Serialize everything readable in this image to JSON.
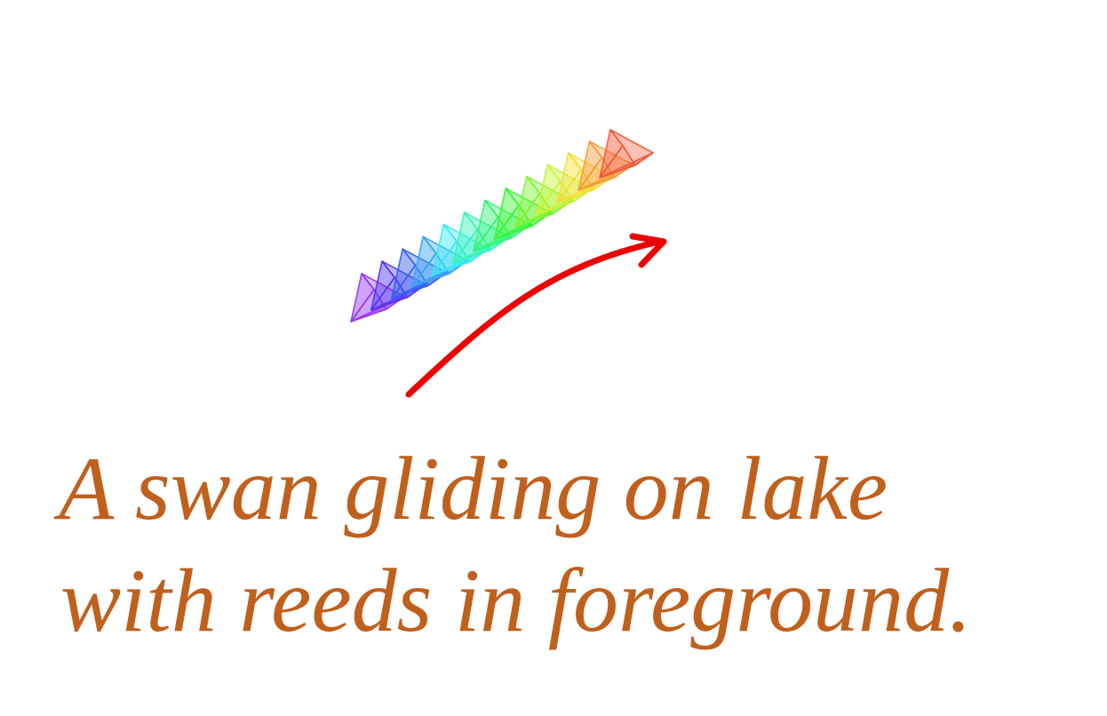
{
  "caption": {
    "line1": "A swan gliding on lake",
    "line2": "with reeds in foreground."
  },
  "colors": {
    "caption": "#c0601c",
    "motion_arrow": "#ee0000",
    "trail_start": "#8b2cf5",
    "trail_end": "#f5522c"
  },
  "trail": {
    "frame_count": 13,
    "direction": "lower-left to upper-right"
  },
  "motion_arrow": {
    "direction": "lower-left to upper-right"
  }
}
